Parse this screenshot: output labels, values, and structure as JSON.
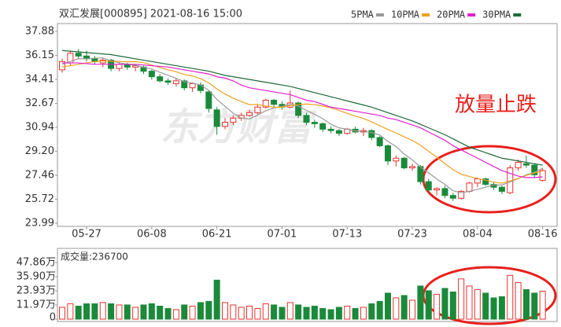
{
  "chart_data": [
    {
      "type": "candlestick",
      "title": "双汇发展[000895] 2021-08-16 15:00",
      "annotation": "放量止跌",
      "watermark": "东方财富",
      "categories": [
        null,
        null,
        null,
        "05-27",
        null,
        null,
        null,
        null,
        null,
        null,
        null,
        "06-08",
        null,
        null,
        null,
        null,
        null,
        null,
        null,
        "06-21",
        null,
        null,
        null,
        null,
        null,
        null,
        null,
        "07-01",
        null,
        null,
        null,
        null,
        null,
        null,
        null,
        "07-13",
        null,
        null,
        null,
        null,
        null,
        null,
        null,
        "07-23",
        null,
        null,
        null,
        null,
        null,
        null,
        null,
        "08-04",
        null,
        null,
        null,
        null,
        null,
        null,
        null,
        "08-16"
      ],
      "open": [
        35.1,
        35.6,
        36.3,
        36.1,
        35.9,
        35.6,
        35.8,
        35.2,
        35.5,
        35.3,
        35.3,
        35.0,
        34.6,
        34.3,
        34.1,
        34.3,
        33.8,
        34.0,
        33.5,
        32.2,
        31.0,
        31.3,
        31.6,
        31.8,
        32.0,
        32.4,
        32.9,
        32.6,
        32.4,
        32.7,
        31.8,
        31.3,
        31.2,
        30.8,
        30.7,
        30.5,
        30.8,
        30.6,
        30.7,
        30.2,
        29.6,
        28.5,
        28.7,
        28.0,
        28.1,
        27.0,
        26.4,
        26.5,
        26.0,
        25.8,
        26.3,
        26.9,
        27.2,
        26.8,
        26.6,
        26.2,
        28.0,
        28.3,
        28.2,
        27.1
      ],
      "high": [
        35.9,
        36.5,
        36.6,
        36.5,
        36.1,
        36.0,
        35.9,
        35.6,
        35.6,
        35.5,
        35.4,
        35.1,
        34.8,
        34.5,
        34.5,
        34.4,
        34.2,
        34.2,
        33.6,
        32.4,
        31.6,
        31.8,
        32.0,
        32.2,
        32.6,
        33.0,
        33.0,
        32.8,
        33.6,
        32.8,
        32.0,
        31.5,
        31.3,
        31.0,
        30.8,
        30.9,
        31.0,
        30.9,
        30.8,
        30.3,
        29.7,
        28.9,
        28.8,
        28.3,
        28.2,
        27.2,
        26.6,
        26.7,
        26.2,
        26.4,
        27.0,
        27.3,
        27.3,
        27.0,
        26.7,
        28.2,
        28.6,
        28.9,
        28.3,
        28.0
      ],
      "low": [
        34.9,
        35.4,
        35.9,
        35.7,
        35.5,
        35.3,
        35.0,
        35.0,
        35.1,
        35.0,
        34.8,
        34.4,
        34.2,
        34.0,
        33.9,
        33.6,
        33.5,
        33.4,
        32.0,
        30.4,
        30.8,
        31.1,
        31.4,
        31.7,
        31.9,
        32.3,
        32.4,
        32.2,
        32.3,
        31.6,
        31.1,
        30.9,
        30.6,
        30.5,
        30.3,
        30.4,
        30.5,
        30.3,
        30.0,
        29.5,
        28.2,
        28.1,
        27.9,
        27.8,
        26.8,
        26.2,
        26.0,
        25.8,
        25.6,
        25.7,
        26.2,
        26.6,
        26.7,
        26.4,
        26.1,
        26.1,
        27.8,
        28.0,
        27.3,
        27.0
      ],
      "close": [
        35.7,
        36.3,
        36.1,
        35.9,
        35.7,
        35.8,
        35.2,
        35.5,
        35.3,
        35.4,
        35.0,
        34.6,
        34.3,
        34.2,
        34.3,
        33.8,
        34.1,
        33.6,
        32.3,
        31.0,
        31.3,
        31.6,
        31.8,
        32.0,
        32.4,
        32.9,
        32.6,
        32.4,
        32.7,
        31.8,
        31.3,
        31.2,
        30.8,
        30.7,
        30.5,
        30.8,
        30.6,
        30.7,
        30.2,
        29.6,
        28.5,
        28.7,
        28.0,
        28.1,
        27.0,
        26.4,
        26.5,
        26.0,
        25.8,
        26.3,
        26.9,
        27.2,
        26.8,
        26.6,
        26.3,
        28.0,
        28.4,
        28.2,
        27.5,
        27.8
      ],
      "up_color": "#e8312f",
      "down_color": "#1a8a3a",
      "series": [
        {
          "name": "5PMA",
          "color": "#9a9a9a",
          "values": [
            35.5,
            35.7,
            35.9,
            35.9,
            35.94,
            35.96,
            35.74,
            35.62,
            35.5,
            35.44,
            35.28,
            35.16,
            34.92,
            34.7,
            34.48,
            34.24,
            34.14,
            34.0,
            33.62,
            32.96,
            32.46,
            31.96,
            31.6,
            31.54,
            31.82,
            32.14,
            32.34,
            32.46,
            32.6,
            32.48,
            32.16,
            31.88,
            31.56,
            31.16,
            30.9,
            30.8,
            30.68,
            30.66,
            30.56,
            30.38,
            29.92,
            29.54,
            29.0,
            28.58,
            28.06,
            27.64,
            27.2,
            26.8,
            26.34,
            26.2,
            26.3,
            26.44,
            26.6,
            26.76,
            26.76,
            26.98,
            27.22,
            27.5,
            27.68,
            27.98
          ]
        },
        {
          "name": "10PMA",
          "color": "#f0a020",
          "values": [
            35.3,
            35.4,
            35.5,
            35.6,
            35.7,
            35.75,
            35.72,
            35.72,
            35.68,
            35.69,
            35.62,
            35.45,
            35.27,
            35.1,
            34.96,
            34.76,
            34.65,
            34.46,
            34.16,
            33.72,
            33.35,
            33.05,
            32.8,
            32.58,
            32.59,
            32.48,
            32.39,
            32.4,
            32.51,
            32.59,
            32.62,
            32.58,
            32.48,
            32.35,
            32.16,
            31.95,
            31.75,
            31.58,
            31.33,
            31.06,
            30.78,
            30.53,
            30.25,
            29.99,
            29.64,
            29.2,
            28.78,
            28.31,
            27.87,
            27.54,
            27.38,
            27.23,
            27.11,
            26.96,
            26.89,
            27.05,
            27.24,
            27.46,
            27.63,
            27.78
          ]
        },
        {
          "name": "20PMA",
          "color": "#e020d0",
          "values": [
            35.6,
            35.6,
            35.6,
            35.55,
            35.5,
            35.5,
            35.5,
            35.5,
            35.5,
            35.5,
            35.45,
            35.4,
            35.35,
            35.3,
            35.2,
            35.1,
            35.0,
            34.9,
            34.8,
            34.6,
            34.5,
            34.3,
            34.0,
            33.8,
            33.7,
            33.6,
            33.5,
            33.4,
            33.3,
            33.1,
            32.9,
            32.8,
            32.6,
            32.4,
            32.3,
            32.2,
            32.1,
            32.0,
            31.9,
            31.8,
            31.6,
            31.5,
            31.3,
            31.1,
            30.9,
            30.6,
            30.3,
            30.0,
            29.6,
            29.3,
            29.0,
            28.7,
            28.4,
            28.1,
            27.8,
            27.6,
            27.4,
            27.3,
            27.3,
            27.35
          ]
        },
        {
          "name": "30PMA",
          "color": "#1e6a3a",
          "values": [
            36.5,
            36.45,
            36.4,
            36.35,
            36.3,
            36.25,
            36.2,
            36.1,
            36.0,
            35.9,
            35.8,
            35.7,
            35.6,
            35.5,
            35.4,
            35.3,
            35.2,
            35.1,
            35.0,
            34.85,
            34.7,
            34.6,
            34.5,
            34.4,
            34.3,
            34.2,
            34.1,
            34.0,
            33.9,
            33.75,
            33.6,
            33.45,
            33.3,
            33.15,
            33.0,
            32.85,
            32.7,
            32.55,
            32.4,
            32.2,
            32.0,
            31.8,
            31.6,
            31.4,
            31.15,
            30.9,
            30.65,
            30.4,
            30.1,
            29.8,
            29.5,
            29.3,
            29.1,
            28.9,
            28.7,
            28.6,
            28.5,
            28.4,
            28.3,
            28.2
          ]
        }
      ],
      "ylim": [
        23.99,
        37.88
      ],
      "yticks": [
        23.99,
        25.72,
        27.46,
        {
          "value": 29.2,
          "label": "29.20"
        },
        30.94,
        32.67,
        34.41,
        36.15,
        37.88
      ]
    },
    {
      "type": "bar",
      "title": "成交量:236700",
      "values": [
        10,
        13,
        11,
        13,
        13,
        14,
        13,
        12,
        12,
        10,
        12,
        13,
        11,
        9,
        8,
        12,
        11,
        14,
        15,
        33,
        14,
        12,
        10,
        11,
        9,
        13,
        12,
        10,
        14,
        12,
        10,
        11,
        9,
        8,
        10,
        11,
        9,
        10,
        13,
        15,
        22,
        18,
        20,
        16,
        28,
        24,
        21,
        26,
        23,
        34,
        28,
        25,
        22,
        18,
        19,
        37,
        31,
        25,
        22,
        23.67
      ],
      "ylim": [
        0,
        47.86
      ],
      "yticks": [
        0,
        {
          "value": 11.97,
          "label": "11.97万"
        },
        {
          "value": 23.93,
          "label": "23.93万"
        },
        {
          "value": 35.9,
          "label": "35.90万"
        },
        {
          "value": 47.86,
          "label": "47.86万"
        }
      ]
    }
  ]
}
